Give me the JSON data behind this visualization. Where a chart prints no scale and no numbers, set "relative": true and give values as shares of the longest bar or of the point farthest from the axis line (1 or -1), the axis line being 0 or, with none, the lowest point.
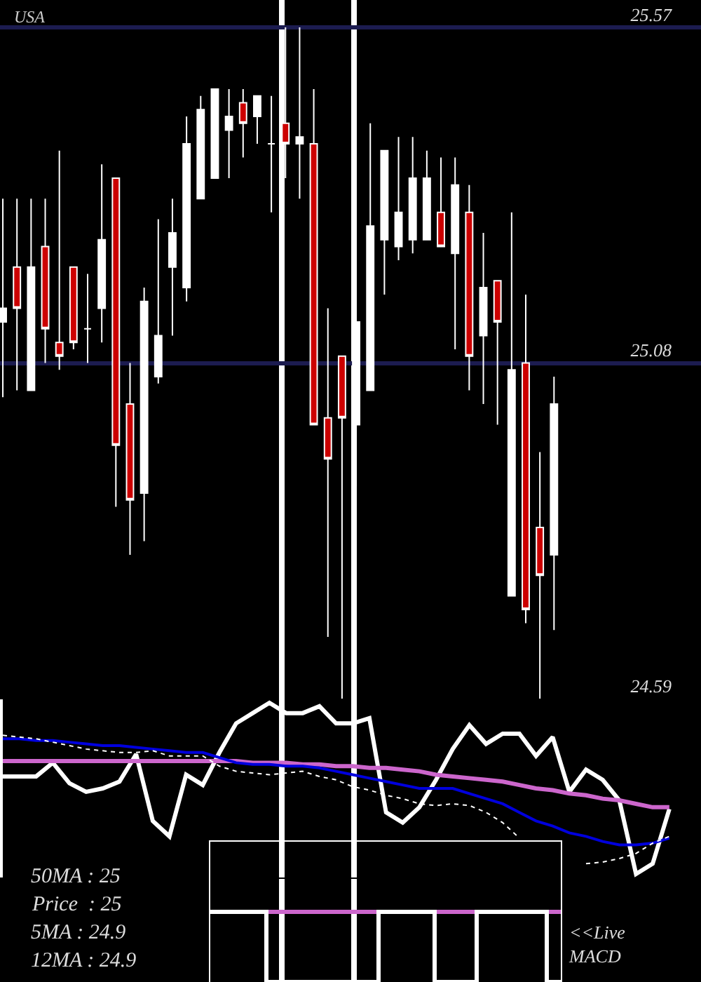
{
  "chart_data": [
    {
      "type": "candlestick",
      "title": "USA",
      "categories": [
        null,
        null,
        null,
        null,
        null,
        null,
        null,
        null,
        null,
        null,
        null,
        null,
        null,
        null,
        null,
        null,
        null,
        null,
        null,
        null,
        null,
        null,
        null,
        null,
        null,
        null,
        null,
        null,
        null,
        null,
        null,
        null,
        null,
        null,
        null,
        null,
        null,
        null,
        null,
        null
      ],
      "ohlc": [
        [
          25.14,
          25.32,
          25.03,
          25.16
        ],
        [
          25.22,
          25.32,
          25.04,
          25.16
        ],
        [
          25.04,
          25.32,
          25.04,
          25.22
        ],
        [
          25.25,
          25.32,
          25.08,
          25.13
        ],
        [
          25.11,
          25.39,
          25.07,
          25.09
        ],
        [
          25.22,
          25.22,
          25.1,
          25.11
        ],
        [
          25.13,
          25.21,
          25.08,
          25.13
        ],
        [
          25.16,
          25.37,
          25.11,
          25.26
        ],
        [
          25.35,
          25.35,
          24.87,
          24.96
        ],
        [
          25.02,
          25.08,
          24.8,
          24.88
        ],
        [
          24.89,
          25.19,
          24.82,
          25.17
        ],
        [
          25.06,
          25.29,
          25.05,
          25.12
        ],
        [
          25.22,
          25.32,
          25.12,
          25.27
        ],
        [
          25.19,
          25.44,
          25.17,
          25.4
        ],
        [
          25.32,
          25.47,
          25.32,
          25.45
        ],
        [
          25.35,
          25.48,
          25.35,
          25.48
        ],
        [
          25.42,
          25.48,
          25.35,
          25.44
        ],
        [
          25.46,
          25.48,
          25.38,
          25.43
        ],
        [
          25.44,
          25.47,
          25.4,
          25.47
        ],
        [
          25.4,
          25.47,
          25.3,
          25.4
        ],
        [
          25.43,
          25.57,
          25.35,
          25.4
        ],
        [
          25.4,
          25.57,
          25.32,
          25.41
        ],
        [
          25.4,
          25.48,
          24.99,
          24.99
        ],
        [
          25.0,
          25.16,
          24.68,
          24.94
        ],
        [
          25.09,
          25.09,
          24.59,
          25.0
        ],
        [
          24.99,
          25.14,
          24.9,
          25.14
        ],
        [
          25.04,
          25.43,
          25.04,
          25.28
        ],
        [
          25.26,
          25.39,
          25.18,
          25.39
        ],
        [
          25.25,
          25.41,
          25.23,
          25.3
        ],
        [
          25.26,
          25.41,
          25.24,
          25.35
        ],
        [
          25.26,
          25.39,
          25.26,
          25.35
        ],
        [
          25.3,
          25.38,
          25.25,
          25.25
        ],
        [
          25.24,
          25.38,
          25.1,
          25.34
        ],
        [
          25.3,
          25.34,
          25.04,
          25.09
        ],
        [
          25.12,
          25.27,
          25.02,
          25.19
        ],
        [
          25.2,
          25.2,
          24.99,
          25.14
        ],
        [
          24.74,
          25.3,
          24.74,
          25.07
        ],
        [
          25.08,
          25.18,
          24.7,
          24.72
        ],
        [
          24.84,
          24.95,
          24.59,
          24.77
        ],
        [
          24.8,
          25.06,
          24.69,
          25.02
        ]
      ],
      "colors": [
        "#ffffff",
        "#cc0000",
        "#ffffff",
        "#cc0000",
        "#cc0000",
        "#cc0000",
        "#ffffff",
        "#ffffff",
        "#cc0000",
        "#cc0000",
        "#ffffff",
        "#ffffff",
        "#ffffff",
        "#ffffff",
        "#ffffff",
        "#ffffff",
        "#ffffff",
        "#cc0000",
        "#ffffff",
        "#ffffff",
        "#cc0000",
        "#ffffff",
        "#cc0000",
        "#cc0000",
        "#cc0000",
        "#ffffff",
        "#ffffff",
        "#ffffff",
        "#ffffff",
        "#ffffff",
        "#ffffff",
        "#cc0000",
        "#ffffff",
        "#cc0000",
        "#ffffff",
        "#cc0000",
        "#ffffff",
        "#cc0000",
        "#cc0000",
        "#ffffff"
      ],
      "ylim": [
        24.59,
        25.61
      ],
      "yticks": [
        24.59,
        25.08,
        25.57
      ],
      "grid": "y",
      "tick_labels": "y"
    },
    {
      "type": "line",
      "relative": true,
      "categories": [
        null,
        null,
        null,
        null,
        null,
        null,
        null,
        null,
        null,
        null,
        null,
        null,
        null,
        null,
        null,
        null,
        null,
        null,
        null,
        null,
        null,
        null,
        null,
        null,
        null,
        null,
        null,
        null,
        null,
        null,
        null,
        null,
        null,
        null,
        null,
        null,
        null,
        null,
        null,
        null,
        null
      ],
      "series": [
        {
          "color": "#ffffff",
          "values": [
            0.57,
            0.57,
            0.57,
            0.65,
            0.53,
            0.48,
            0.5,
            0.54,
            0.7,
            0.31,
            0.22,
            0.58,
            0.52,
            0.71,
            0.88,
            0.94,
            1.0,
            0.94,
            0.94,
            0.98,
            0.88,
            0.88,
            0.91,
            0.36,
            0.3,
            0.39,
            0.55,
            0.73,
            0.87,
            0.76,
            0.82,
            0.82,
            0.69,
            0.8,
            0.48,
            0.61,
            0.55,
            0.43,
            0.0,
            0.06,
            0.38
          ]
        },
        {
          "color": "#cc66cc",
          "values": [
            0.66,
            0.66,
            0.66,
            0.66,
            0.66,
            0.66,
            0.66,
            0.66,
            0.66,
            0.66,
            0.66,
            0.66,
            0.66,
            0.66,
            0.66,
            0.65,
            0.65,
            0.65,
            0.64,
            0.64,
            0.63,
            0.63,
            0.62,
            0.62,
            0.61,
            0.6,
            0.58,
            0.57,
            0.56,
            0.55,
            0.54,
            0.52,
            0.5,
            0.49,
            0.47,
            0.46,
            0.44,
            0.43,
            0.41,
            0.39,
            0.39
          ]
        },
        {
          "color": "#0000dd",
          "values": [
            0.79,
            0.79,
            0.78,
            0.78,
            0.77,
            0.76,
            0.75,
            0.75,
            0.74,
            0.73,
            0.72,
            0.71,
            0.71,
            0.68,
            0.65,
            0.64,
            0.64,
            0.63,
            0.63,
            0.62,
            0.6,
            0.58,
            0.56,
            0.54,
            0.52,
            0.5,
            0.5,
            0.5,
            0.47,
            0.44,
            0.41,
            0.36,
            0.31,
            0.28,
            0.24,
            0.22,
            0.19,
            0.17,
            0.17,
            0.18,
            0.21
          ]
        },
        {
          "color": "#ffffff",
          "line_style": "dotted",
          "values": [
            0.81,
            0.8,
            0.79,
            0.77,
            0.75,
            0.73,
            0.72,
            0.71,
            0.71,
            0.72,
            0.69,
            0.69,
            0.69,
            0.63,
            0.6,
            0.59,
            0.58,
            0.59,
            0.6,
            0.57,
            0.55,
            0.51,
            0.49,
            0.46,
            0.44,
            0.41,
            0.4,
            0.41,
            0.4,
            0.36,
            0.3,
            0.21,
            null,
            null,
            null,
            0.06,
            0.07,
            0.09,
            0.12,
            0.18,
            0.22
          ]
        }
      ],
      "annotations": [
        "50MA : 25",
        "Price  : 25",
        "5MA : 24.9",
        "12MA : 24.9"
      ],
      "marker": "none",
      "tick_labels": false
    },
    {
      "type": "step",
      "relative": true,
      "categories": [
        null,
        null,
        null,
        null,
        null,
        null,
        null,
        null,
        null,
        null,
        null,
        null,
        null,
        null,
        null,
        null,
        null,
        null,
        null,
        null,
        null,
        null,
        null,
        null,
        null,
        null
      ],
      "series": [
        {
          "color": "#cc66cc",
          "values": [
            null,
            null,
            null,
            null,
            1,
            1,
            1,
            1,
            1,
            1,
            1,
            1,
            1,
            null,
            null,
            null,
            1,
            1,
            1,
            1,
            null,
            null,
            null,
            null,
            1,
            1
          ]
        },
        {
          "color": "#ffffff",
          "values": [
            1,
            1,
            1,
            1,
            0,
            0,
            0,
            0,
            0,
            0,
            0,
            0,
            1,
            1,
            1,
            1,
            0,
            0,
            0,
            1,
            1,
            1,
            1,
            1,
            0,
            0
          ]
        }
      ],
      "annotations": [
        "<<Live\nMACD"
      ],
      "marker": "none",
      "tick_labels": false
    }
  ]
}
